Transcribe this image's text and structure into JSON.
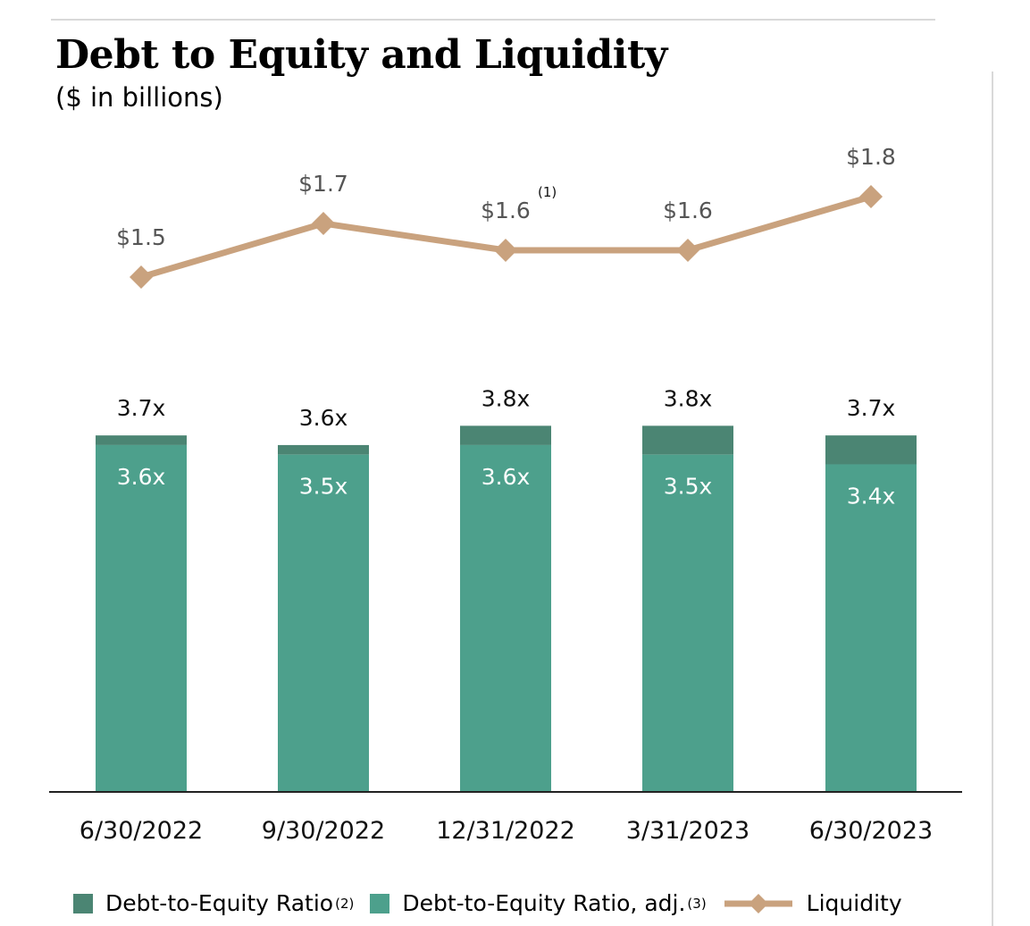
{
  "title": "Debt to Equity and Liquidity",
  "subtitle": "($ in billions)",
  "chart_data": {
    "type": "bar",
    "categories": [
      "6/30/2022",
      "9/30/2022",
      "12/31/2022",
      "3/31/2023",
      "6/30/2023"
    ],
    "series": [
      {
        "name": "Debt-to-Equity Ratio",
        "name_sup": "(2)",
        "kind": "bar-total",
        "values": [
          3.7,
          3.6,
          3.8,
          3.8,
          3.7
        ],
        "labels": [
          "3.7x",
          "3.6x",
          "3.8x",
          "3.8x",
          "3.7x"
        ],
        "color": "#4b8573"
      },
      {
        "name": "Debt-to-Equity Ratio, adj.",
        "name_sup": "(3)",
        "kind": "bar-base",
        "values": [
          3.6,
          3.5,
          3.6,
          3.5,
          3.4
        ],
        "labels": [
          "3.6x",
          "3.5x",
          "3.6x",
          "3.5x",
          "3.4x"
        ],
        "color": "#4da08c"
      },
      {
        "name": "Liquidity",
        "kind": "line",
        "values": [
          1.5,
          1.7,
          1.6,
          1.6,
          1.8
        ],
        "labels": [
          "$1.5",
          "$1.7",
          "$1.6",
          "$1.6",
          "$1.8"
        ],
        "label_sups": [
          "",
          "",
          "(1)",
          "",
          ""
        ],
        "color": "#c9a27e"
      }
    ],
    "xlabel": "",
    "ylabel": "",
    "grid": false,
    "legend_position": "bottom"
  }
}
